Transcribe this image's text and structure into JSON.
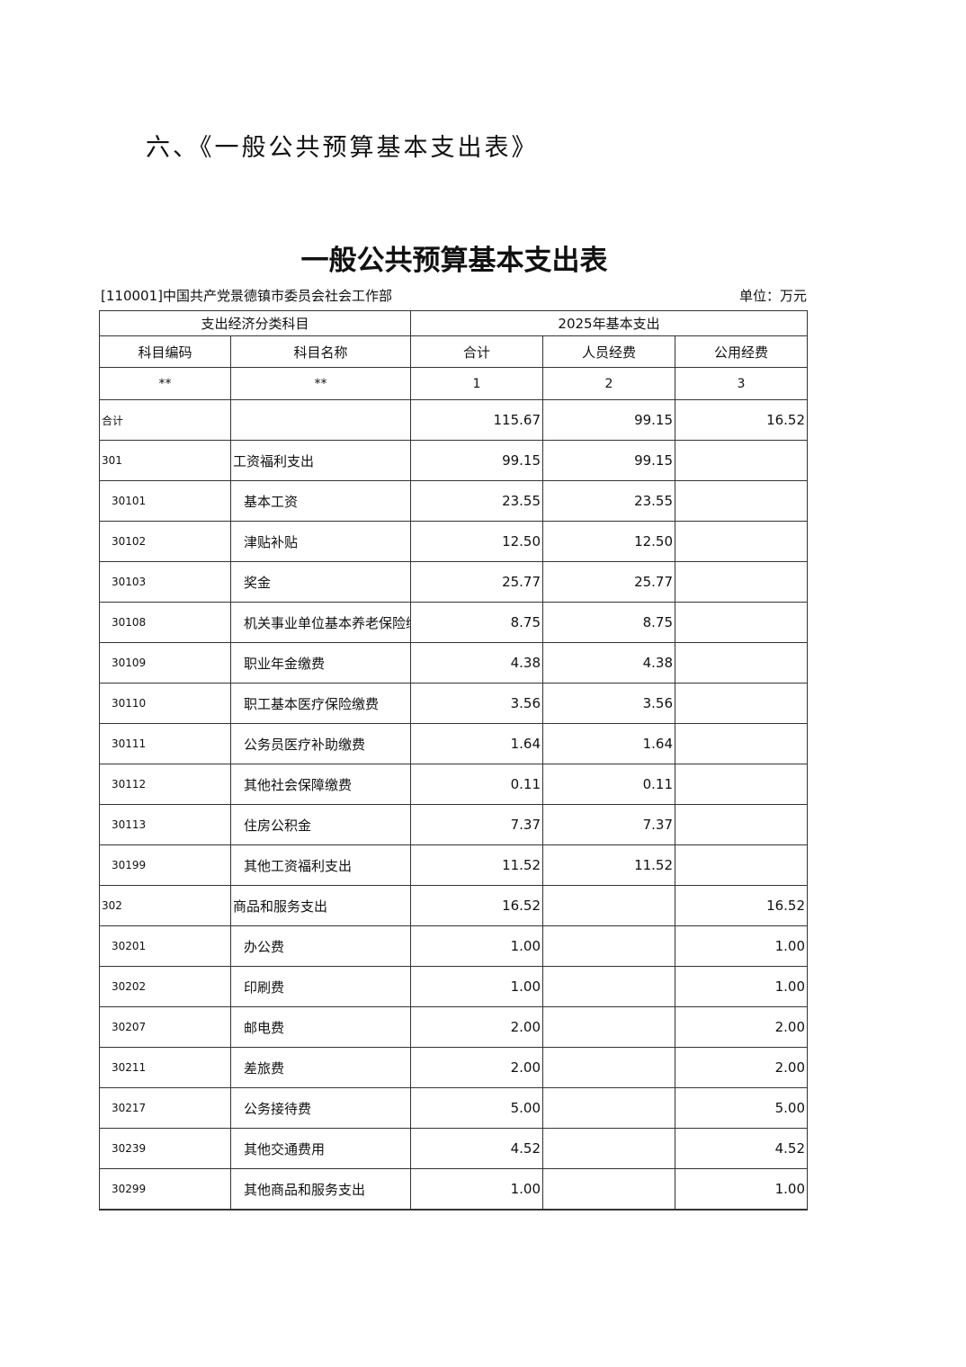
{
  "section_title": "六、《一般公共预算基本支出表》",
  "table_title": "一般公共预算基本支出表",
  "department": "[110001]中国共产党景德镇市委员会社会工作部",
  "unit": "单位：万元",
  "header": {
    "group_left": "支出经济分类科目",
    "group_right": "2025年基本支出",
    "code": "科目编码",
    "name": "科目名称",
    "total": "合计",
    "personnel": "人员经费",
    "public": "公用经费",
    "idx_code": "**",
    "idx_name": "**",
    "idx_total": "1",
    "idx_personnel": "2",
    "idx_public": "3"
  },
  "rows": [
    {
      "code": "合计",
      "name": "",
      "total": "115.67",
      "personnel": "99.15",
      "public": "16.52",
      "level": 0
    },
    {
      "code": "301",
      "name": "工资福利支出",
      "total": "99.15",
      "personnel": "99.15",
      "public": "",
      "level": 0
    },
    {
      "code": "30101",
      "name": "基本工资",
      "total": "23.55",
      "personnel": "23.55",
      "public": "",
      "level": 1
    },
    {
      "code": "30102",
      "name": "津贴补贴",
      "total": "12.50",
      "personnel": "12.50",
      "public": "",
      "level": 1
    },
    {
      "code": "30103",
      "name": "奖金",
      "total": "25.77",
      "personnel": "25.77",
      "public": "",
      "level": 1
    },
    {
      "code": "30108",
      "name": "机关事业单位基本养老保险缴费",
      "total": "8.75",
      "personnel": "8.75",
      "public": "",
      "level": 1
    },
    {
      "code": "30109",
      "name": "职业年金缴费",
      "total": "4.38",
      "personnel": "4.38",
      "public": "",
      "level": 1
    },
    {
      "code": "30110",
      "name": "职工基本医疗保险缴费",
      "total": "3.56",
      "personnel": "3.56",
      "public": "",
      "level": 1
    },
    {
      "code": "30111",
      "name": "公务员医疗补助缴费",
      "total": "1.64",
      "personnel": "1.64",
      "public": "",
      "level": 1
    },
    {
      "code": "30112",
      "name": "其他社会保障缴费",
      "total": "0.11",
      "personnel": "0.11",
      "public": "",
      "level": 1
    },
    {
      "code": "30113",
      "name": "住房公积金",
      "total": "7.37",
      "personnel": "7.37",
      "public": "",
      "level": 1
    },
    {
      "code": "30199",
      "name": "其他工资福利支出",
      "total": "11.52",
      "personnel": "11.52",
      "public": "",
      "level": 1
    },
    {
      "code": "302",
      "name": "商品和服务支出",
      "total": "16.52",
      "personnel": "",
      "public": "16.52",
      "level": 0
    },
    {
      "code": "30201",
      "name": "办公费",
      "total": "1.00",
      "personnel": "",
      "public": "1.00",
      "level": 1
    },
    {
      "code": "30202",
      "name": "印刷费",
      "total": "1.00",
      "personnel": "",
      "public": "1.00",
      "level": 1
    },
    {
      "code": "30207",
      "name": "邮电费",
      "total": "2.00",
      "personnel": "",
      "public": "2.00",
      "level": 1
    },
    {
      "code": "30211",
      "name": "差旅费",
      "total": "2.00",
      "personnel": "",
      "public": "2.00",
      "level": 1
    },
    {
      "code": "30217",
      "name": "公务接待费",
      "total": "5.00",
      "personnel": "",
      "public": "5.00",
      "level": 1
    },
    {
      "code": "30239",
      "name": "其他交通费用",
      "total": "4.52",
      "personnel": "",
      "public": "4.52",
      "level": 1
    },
    {
      "code": "30299",
      "name": "其他商品和服务支出",
      "total": "1.00",
      "personnel": "",
      "public": "1.00",
      "level": 1
    }
  ]
}
